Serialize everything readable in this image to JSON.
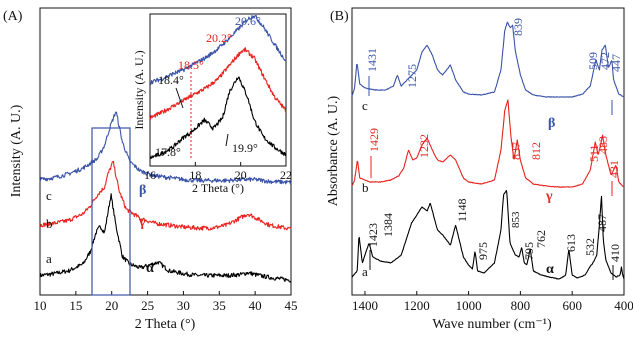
{
  "panel_a": {
    "label": "(A)",
    "xlabel": "2 Theta (°)",
    "ylabel": "Intensity (A. U.)",
    "series_letters": [
      "a",
      "b",
      "c"
    ],
    "phase_labels": [
      "α",
      "γ",
      "β"
    ]
  },
  "inset": {
    "xlabel": "2 Theta (°)",
    "ylabel": "Intensity (A. U.)",
    "annotations": [
      "20.6°",
      "20.2°",
      "18.5°",
      "18.4°",
      "17.8°",
      "19.9°"
    ]
  },
  "panel_b": {
    "label": "(B)",
    "xlabel": "Wave number (cm⁻¹)",
    "ylabel": "Absorbance (A. U.)",
    "series_letters": [
      "a",
      "b",
      "c"
    ],
    "phase_labels": [
      "α",
      "γ",
      "β"
    ],
    "beta_peaks": [
      "1431",
      "1275",
      "839",
      "509",
      "472",
      "447"
    ],
    "gamma_peaks": [
      "1429",
      "1232",
      "837",
      "812",
      "511",
      "483",
      "431"
    ],
    "alpha_peaks": [
      "1423",
      "1384",
      "1148",
      "975",
      "853",
      "795",
      "762",
      "613",
      "532",
      "487",
      "410"
    ]
  },
  "colors": {
    "alpha": "#000000",
    "gamma": "#e8221e",
    "beta": "#3a53a8"
  },
  "chart_data": [
    {
      "type": "line",
      "panel": "(A)",
      "xlabel": "2 Theta (°)",
      "ylabel": "Intensity (A. U.)",
      "xlim": [
        10,
        45
      ],
      "xticks": [
        10,
        15,
        20,
        25,
        30,
        35,
        40,
        45
      ],
      "series": [
        {
          "name": "a",
          "phase": "α",
          "color": "#000000",
          "offset": 0,
          "x": [
            10,
            12,
            14,
            16,
            17,
            17.8,
            18.4,
            19,
            19.9,
            20.6,
            21.5,
            22.5,
            24,
            26.5,
            28,
            30,
            32,
            34,
            36,
            38,
            39,
            40,
            42,
            45
          ],
          "y": [
            0.1,
            0.12,
            0.15,
            0.22,
            0.35,
            0.55,
            0.62,
            0.55,
            0.95,
            0.62,
            0.3,
            0.22,
            0.18,
            0.24,
            0.15,
            0.12,
            0.1,
            0.1,
            0.1,
            0.11,
            0.13,
            0.11,
            0.08,
            0.05
          ]
        },
        {
          "name": "b",
          "phase": "γ",
          "color": "#e8221e",
          "offset": 0.55,
          "x": [
            10,
            12,
            14,
            16,
            17,
            18,
            18.5,
            19,
            19.5,
            20.2,
            21,
            22,
            24,
            26,
            28,
            30,
            32,
            34,
            36,
            38,
            39,
            40,
            42,
            45
          ],
          "y": [
            0.08,
            0.1,
            0.13,
            0.2,
            0.28,
            0.4,
            0.44,
            0.48,
            0.62,
            0.75,
            0.45,
            0.25,
            0.15,
            0.1,
            0.08,
            0.06,
            0.05,
            0.05,
            0.08,
            0.16,
            0.2,
            0.16,
            0.08,
            0.04
          ]
        },
        {
          "name": "c",
          "phase": "β",
          "color": "#3a53a8",
          "offset": 1.05,
          "x": [
            10,
            12,
            14,
            16,
            18,
            19,
            19.8,
            20.6,
            21.5,
            22.5,
            24,
            26,
            28,
            30,
            32,
            34,
            36,
            38,
            40,
            42,
            45
          ],
          "y": [
            0.06,
            0.08,
            0.12,
            0.18,
            0.28,
            0.42,
            0.62,
            0.78,
            0.45,
            0.25,
            0.15,
            0.1,
            0.08,
            0.06,
            0.05,
            0.05,
            0.05,
            0.06,
            0.06,
            0.04,
            0.03
          ]
        }
      ]
    },
    {
      "type": "line",
      "panel": "inset",
      "xlabel": "2 Theta (°)",
      "ylabel": "Intensity (A. U.)",
      "xlim": [
        16,
        22
      ],
      "xticks": [
        16,
        18,
        20,
        22
      ],
      "series": [
        {
          "name": "a",
          "color": "#000000",
          "offset": 0,
          "x": [
            16,
            16.5,
            17,
            17.5,
            17.8,
            18,
            18.4,
            18.8,
            19.2,
            19.5,
            19.9,
            20.3,
            20.6,
            21,
            21.5,
            22
          ],
          "y": [
            0.02,
            0.06,
            0.12,
            0.22,
            0.26,
            0.3,
            0.38,
            0.3,
            0.4,
            0.65,
            0.8,
            0.6,
            0.38,
            0.22,
            0.12,
            0.05
          ]
        },
        {
          "name": "b",
          "color": "#e8221e",
          "offset": 0.35,
          "x": [
            16,
            16.5,
            17,
            17.5,
            18,
            18.5,
            19,
            19.5,
            20,
            20.2,
            20.6,
            21,
            21.5,
            22
          ],
          "y": [
            0.05,
            0.1,
            0.16,
            0.22,
            0.28,
            0.34,
            0.42,
            0.55,
            0.68,
            0.7,
            0.62,
            0.45,
            0.25,
            0.12
          ]
        },
        {
          "name": "c",
          "color": "#3a53a8",
          "offset": 0.72,
          "x": [
            16,
            16.5,
            17,
            17.5,
            18,
            18.5,
            19,
            19.5,
            20,
            20.3,
            20.6,
            21,
            21.5,
            22
          ],
          "y": [
            0.02,
            0.05,
            0.1,
            0.14,
            0.2,
            0.26,
            0.34,
            0.44,
            0.55,
            0.62,
            0.66,
            0.55,
            0.38,
            0.22
          ]
        }
      ]
    },
    {
      "type": "line",
      "panel": "(B)",
      "xlabel": "Wave number (cm⁻¹)",
      "ylabel": "Absorbance (A. U.)",
      "xlim": [
        1450,
        400
      ],
      "xticks": [
        1400,
        1200,
        1000,
        800,
        600,
        400
      ],
      "series": [
        {
          "name": "a",
          "phase": "α",
          "color": "#000000",
          "offset": 0,
          "x": [
            1450,
            1430,
            1423,
            1410,
            1400,
            1384,
            1370,
            1340,
            1300,
            1260,
            1220,
            1200,
            1180,
            1160,
            1148,
            1120,
            1100,
            1070,
            1050,
            1020,
            1000,
            985,
            975,
            965,
            940,
            900,
            875,
            865,
            853,
            840,
            820,
            805,
            795,
            785,
            775,
            762,
            750,
            720,
            690,
            650,
            625,
            613,
            600,
            580,
            550,
            532,
            520,
            505,
            495,
            487,
            480,
            470,
            450,
            430,
            415,
            410,
            405,
            400
          ],
          "y": [
            0.08,
            0.14,
            0.5,
            0.22,
            0.3,
            0.42,
            0.28,
            0.24,
            0.22,
            0.3,
            0.62,
            0.7,
            0.78,
            0.74,
            0.82,
            0.55,
            0.5,
            0.4,
            0.6,
            0.28,
            0.2,
            0.16,
            0.34,
            0.14,
            0.12,
            0.22,
            0.55,
            0.9,
            0.95,
            0.42,
            0.3,
            0.28,
            0.38,
            0.22,
            0.2,
            0.36,
            0.14,
            0.1,
            0.08,
            0.06,
            0.1,
            0.36,
            0.1,
            0.07,
            0.1,
            0.18,
            0.22,
            0.3,
            0.6,
            0.9,
            0.45,
            0.25,
            0.12,
            0.08,
            0.1,
            0.18,
            0.1,
            0.06
          ]
        },
        {
          "name": "b",
          "phase": "γ",
          "color": "#e8221e",
          "offset": 0.95,
          "x": [
            1450,
            1440,
            1429,
            1420,
            1400,
            1380,
            1340,
            1300,
            1270,
            1250,
            1232,
            1215,
            1200,
            1180,
            1160,
            1140,
            1120,
            1100,
            1070,
            1050,
            1020,
            1000,
            950,
            900,
            875,
            860,
            848,
            837,
            825,
            812,
            800,
            780,
            750,
            700,
            650,
            600,
            560,
            530,
            511,
            500,
            490,
            483,
            470,
            450,
            431,
            420,
            405,
            400
          ],
          "y": [
            0.04,
            0.1,
            0.3,
            0.12,
            0.1,
            0.08,
            0.08,
            0.1,
            0.14,
            0.22,
            0.4,
            0.3,
            0.32,
            0.45,
            0.52,
            0.4,
            0.3,
            0.28,
            0.35,
            0.3,
            0.12,
            0.08,
            0.06,
            0.1,
            0.4,
            0.8,
            0.9,
            0.55,
            0.3,
            0.5,
            0.3,
            0.12,
            0.06,
            0.04,
            0.03,
            0.03,
            0.06,
            0.2,
            0.48,
            0.35,
            0.45,
            0.55,
            0.35,
            0.15,
            0.25,
            0.08,
            0.04,
            0.03
          ]
        },
        {
          "name": "c",
          "phase": "β",
          "color": "#3a53a8",
          "offset": 1.85,
          "x": [
            1450,
            1440,
            1431,
            1420,
            1400,
            1360,
            1320,
            1290,
            1275,
            1260,
            1230,
            1200,
            1180,
            1160,
            1140,
            1120,
            1100,
            1070,
            1050,
            1020,
            1000,
            950,
            900,
            875,
            860,
            850,
            839,
            830,
            820,
            800,
            780,
            750,
            700,
            650,
            600,
            560,
            530,
            509,
            495,
            485,
            472,
            460,
            447,
            440,
            420,
            400
          ],
          "y": [
            0.04,
            0.12,
            0.38,
            0.16,
            0.12,
            0.1,
            0.1,
            0.14,
            0.25,
            0.14,
            0.22,
            0.3,
            0.48,
            0.55,
            0.45,
            0.3,
            0.25,
            0.35,
            0.2,
            0.08,
            0.06,
            0.05,
            0.08,
            0.3,
            0.7,
            0.78,
            0.72,
            0.75,
            0.5,
            0.25,
            0.1,
            0.05,
            0.03,
            0.03,
            0.03,
            0.06,
            0.14,
            0.4,
            0.3,
            0.5,
            0.55,
            0.32,
            0.4,
            0.2,
            0.06,
            0.03
          ]
        }
      ]
    }
  ]
}
